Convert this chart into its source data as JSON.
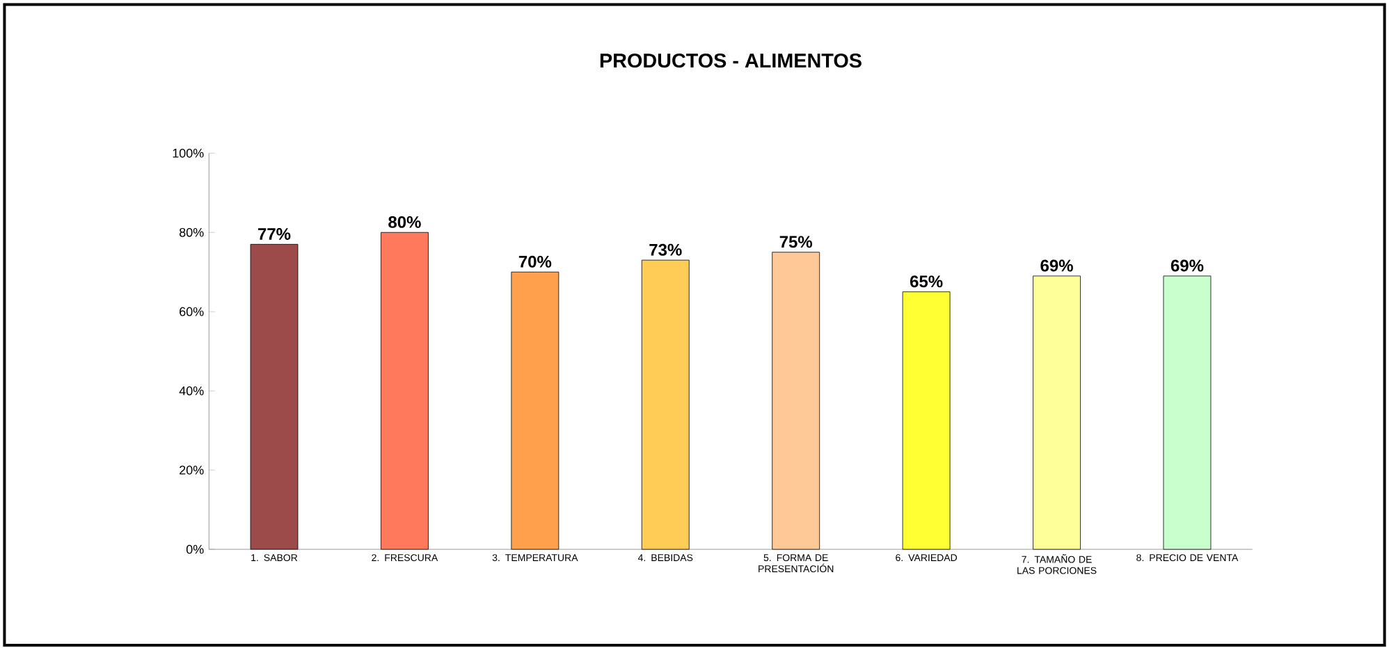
{
  "chart_data": {
    "type": "bar",
    "title": "PRODUCTOS - ALIMENTOS",
    "categories": [
      "1. SABOR",
      "2. FRESCURA",
      "3. TEMPERATURA",
      "4. BEBIDAS",
      "5. FORMA DE PRESENTACIÓN",
      "6. VARIEDAD",
      "7. TAMAÑO DE LAS PORCIONES",
      "8. PRECIO DE VENTA"
    ],
    "values": [
      77,
      80,
      70,
      73,
      75,
      65,
      69,
      69
    ],
    "value_labels": [
      "77%",
      "80%",
      "70%",
      "73%",
      "75%",
      "65%",
      "69%",
      "69%"
    ],
    "colors": [
      "#9c4a4a",
      "#ff7a5c",
      "#ffa04d",
      "#ffcc55",
      "#ffc896",
      "#ffff33",
      "#ffff99",
      "#c8ffcc"
    ],
    "ylim": [
      0,
      100
    ],
    "yticks": [
      {
        "value": 0,
        "label": "0%"
      },
      {
        "value": 20,
        "label": "20%"
      },
      {
        "value": 40,
        "label": "40%"
      },
      {
        "value": 60,
        "label": "60%"
      },
      {
        "value": 80,
        "label": "80%"
      },
      {
        "value": 100,
        "label": "100%"
      }
    ]
  }
}
